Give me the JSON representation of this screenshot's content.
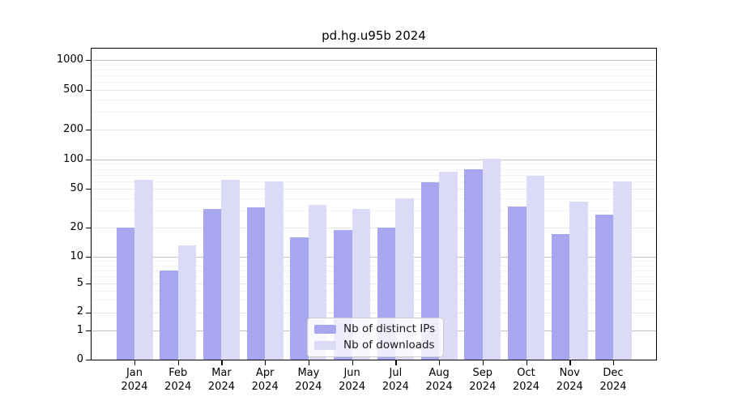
{
  "chart_data": {
    "type": "bar",
    "title": "pd.hg.u95b 2024",
    "xlabel": "",
    "ylabel": "",
    "y_scale": "symlog",
    "grid": "horizontal",
    "legend_position": "lower center",
    "year_label": "2024",
    "categories": [
      "Jan",
      "Feb",
      "Mar",
      "Apr",
      "May",
      "Jun",
      "Jul",
      "Aug",
      "Sep",
      "Oct",
      "Nov",
      "Dec"
    ],
    "y_ticks": [
      0,
      1,
      2,
      5,
      10,
      20,
      50,
      100,
      200,
      500,
      1000
    ],
    "ylim": [
      0,
      1300
    ],
    "series": [
      {
        "name": "Nb of distinct IPs",
        "color": "#a7a7f0",
        "values": [
          20,
          7,
          31,
          32,
          16,
          19,
          20,
          58,
          79,
          33,
          17,
          27
        ]
      },
      {
        "name": "Nb of downloads",
        "color": "#dbdbf8",
        "values": [
          62,
          13,
          62,
          60,
          34,
          31,
          40,
          75,
          101,
          68,
          37,
          60
        ]
      }
    ]
  }
}
